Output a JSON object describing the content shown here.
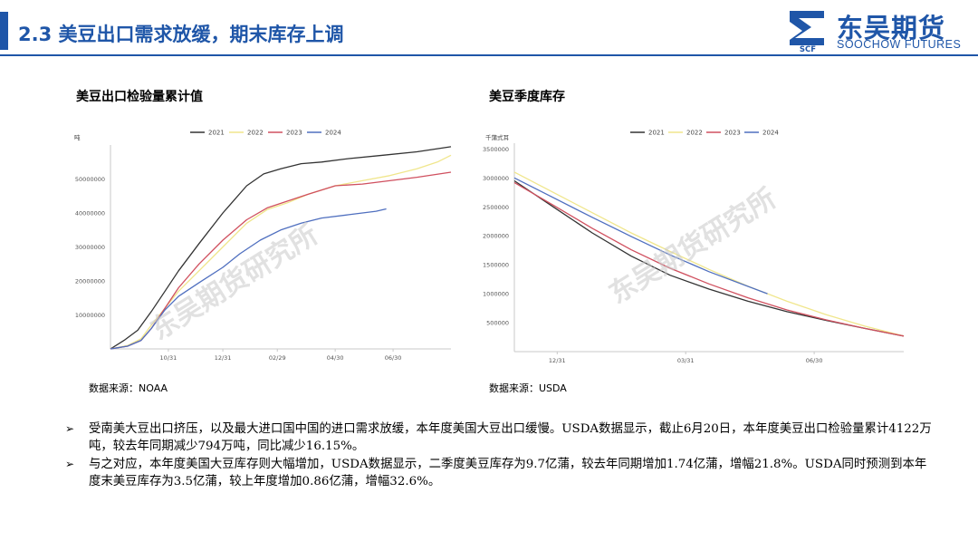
{
  "header": {
    "title": "2.3  美豆出口需求放缓，期末库存上调"
  },
  "logo": {
    "mark_text": "SCF",
    "name_cn": "东吴期货",
    "name_en": "SOOCHOW FUTURES",
    "watermark": "东吴期货研究所"
  },
  "colors": {
    "brand": "#1f56a8",
    "s2021": "#333333",
    "s2022": "#f0e68c",
    "s2023": "#d0505f",
    "s2024": "#4f6fbf"
  },
  "chart_data": [
    {
      "type": "line",
      "title": "美豆出口检验量累计值",
      "ylabel": "吨",
      "ylim": [
        0,
        60000000
      ],
      "yticks": [
        10000000,
        20000000,
        30000000,
        40000000,
        50000000
      ],
      "ytick_labels": [
        "10000000",
        "20000000",
        "30000000",
        "40000000",
        "50000000"
      ],
      "xticks": [
        {
          "label": "10/31",
          "t": 0.17
        },
        {
          "label": "12/31",
          "t": 0.33
        },
        {
          "label": "02/29",
          "t": 0.49
        },
        {
          "label": "04/30",
          "t": 0.66
        },
        {
          "label": "06/30",
          "t": 0.83
        }
      ],
      "legend_position": "top-center",
      "grid": false,
      "series": [
        {
          "name": "2021",
          "color": "#333333",
          "points": [
            [
              0,
              0
            ],
            [
              0.04,
              2500000
            ],
            [
              0.08,
              5500000
            ],
            [
              0.12,
              11000000
            ],
            [
              0.16,
              17000000
            ],
            [
              0.2,
              23000000
            ],
            [
              0.26,
              31000000
            ],
            [
              0.33,
              40000000
            ],
            [
              0.4,
              48000000
            ],
            [
              0.45,
              51500000
            ],
            [
              0.5,
              53000000
            ],
            [
              0.56,
              54500000
            ],
            [
              0.62,
              55000000
            ],
            [
              0.7,
              56000000
            ],
            [
              0.8,
              57000000
            ],
            [
              0.9,
              58000000
            ],
            [
              1,
              59500000
            ]
          ]
        },
        {
          "name": "2022",
          "color": "#f0e68c",
          "points": [
            [
              0,
              0
            ],
            [
              0.05,
              1000000
            ],
            [
              0.09,
              3000000
            ],
            [
              0.12,
              7000000
            ],
            [
              0.16,
              12000000
            ],
            [
              0.2,
              17000000
            ],
            [
              0.26,
              23000000
            ],
            [
              0.33,
              30000000
            ],
            [
              0.4,
              37000000
            ],
            [
              0.46,
              41000000
            ],
            [
              0.52,
              43000000
            ],
            [
              0.58,
              45500000
            ],
            [
              0.66,
              48000000
            ],
            [
              0.74,
              49500000
            ],
            [
              0.82,
              51000000
            ],
            [
              0.9,
              53000000
            ],
            [
              0.96,
              55000000
            ],
            [
              1,
              57000000
            ]
          ]
        },
        {
          "name": "2023",
          "color": "#d0505f",
          "points": [
            [
              0,
              0
            ],
            [
              0.05,
              800000
            ],
            [
              0.09,
              2500000
            ],
            [
              0.12,
              6000000
            ],
            [
              0.16,
              12000000
            ],
            [
              0.2,
              18000000
            ],
            [
              0.26,
              25000000
            ],
            [
              0.33,
              32000000
            ],
            [
              0.4,
              38000000
            ],
            [
              0.46,
              41500000
            ],
            [
              0.52,
              43500000
            ],
            [
              0.58,
              45500000
            ],
            [
              0.66,
              48000000
            ],
            [
              0.74,
              48500000
            ],
            [
              0.82,
              49500000
            ],
            [
              0.9,
              50500000
            ],
            [
              1,
              52000000
            ]
          ]
        },
        {
          "name": "2024",
          "color": "#4f6fbf",
          "points": [
            [
              0,
              0
            ],
            [
              0.05,
              800000
            ],
            [
              0.09,
              2500000
            ],
            [
              0.12,
              6000000
            ],
            [
              0.16,
              11500000
            ],
            [
              0.2,
              15500000
            ],
            [
              0.26,
              19500000
            ],
            [
              0.33,
              24000000
            ],
            [
              0.38,
              28000000
            ],
            [
              0.44,
              32000000
            ],
            [
              0.5,
              35000000
            ],
            [
              0.56,
              37000000
            ],
            [
              0.62,
              38500000
            ],
            [
              0.7,
              39500000
            ],
            [
              0.78,
              40500000
            ],
            [
              0.81,
              41200000
            ]
          ]
        }
      ]
    },
    {
      "type": "line",
      "title": "美豆季度库存",
      "ylabel": "千蒲式耳",
      "ylim": [
        0,
        3600000
      ],
      "yticks": [
        500000,
        1000000,
        1500000,
        2000000,
        2500000,
        3000000,
        3500000
      ],
      "ytick_labels": [
        "500000",
        "1000000",
        "1500000",
        "2000000",
        "2500000",
        "3000000",
        "3500000"
      ],
      "xticks": [
        {
          "label": "12/31",
          "t": 0.11
        },
        {
          "label": "03/31",
          "t": 0.44
        },
        {
          "label": "06/30",
          "t": 0.77
        }
      ],
      "legend_position": "top-center",
      "grid": false,
      "series": [
        {
          "name": "2021",
          "color": "#333333",
          "points": [
            [
              0,
              2950000
            ],
            [
              0.1,
              2500000
            ],
            [
              0.2,
              2050000
            ],
            [
              0.3,
              1650000
            ],
            [
              0.4,
              1320000
            ],
            [
              0.5,
              1080000
            ],
            [
              0.6,
              870000
            ],
            [
              0.7,
              690000
            ],
            [
              0.8,
              540000
            ],
            [
              0.9,
              400000
            ],
            [
              1,
              270000
            ]
          ]
        },
        {
          "name": "2022",
          "color": "#f0e68c",
          "points": [
            [
              0,
              3100000
            ],
            [
              0.1,
              2750000
            ],
            [
              0.2,
              2400000
            ],
            [
              0.3,
              2050000
            ],
            [
              0.4,
              1730000
            ],
            [
              0.5,
              1420000
            ],
            [
              0.6,
              1130000
            ],
            [
              0.7,
              870000
            ],
            [
              0.8,
              640000
            ],
            [
              0.9,
              440000
            ],
            [
              1,
              270000
            ]
          ]
        },
        {
          "name": "2023",
          "color": "#d0505f",
          "points": [
            [
              0,
              2920000
            ],
            [
              0.1,
              2530000
            ],
            [
              0.2,
              2130000
            ],
            [
              0.3,
              1760000
            ],
            [
              0.4,
              1440000
            ],
            [
              0.5,
              1170000
            ],
            [
              0.6,
              930000
            ],
            [
              0.7,
              720000
            ],
            [
              0.8,
              550000
            ],
            [
              0.9,
              400000
            ],
            [
              1,
              270000
            ]
          ]
        },
        {
          "name": "2024",
          "color": "#4f6fbf",
          "points": [
            [
              0,
              3000000
            ],
            [
              0.1,
              2660000
            ],
            [
              0.2,
              2320000
            ],
            [
              0.3,
              1990000
            ],
            [
              0.4,
              1670000
            ],
            [
              0.5,
              1380000
            ],
            [
              0.65,
              1000000
            ]
          ]
        }
      ]
    }
  ],
  "sources": {
    "left": "数据来源：NOAA",
    "right": "数据来源：USDA"
  },
  "bullets": [
    "受南美大豆出口挤压，以及最大进口国中国的进口需求放缓，本年度美国大豆出口缓慢。USDA数据显示，截止6月20日，本年度美豆出口检验量累计4122万吨，较去年同期减少794万吨，同比减少16.15%。",
    "与之对应，本年度美国大豆库存则大幅增加，USDA数据显示，二季度美豆库存为9.7亿蒲，较去年同期增加1.74亿蒲，增幅21.8%。USDA同时预测到本年度末美豆库存为3.5亿蒲，较上年度增加0.86亿蒲，增幅32.6%。"
  ]
}
